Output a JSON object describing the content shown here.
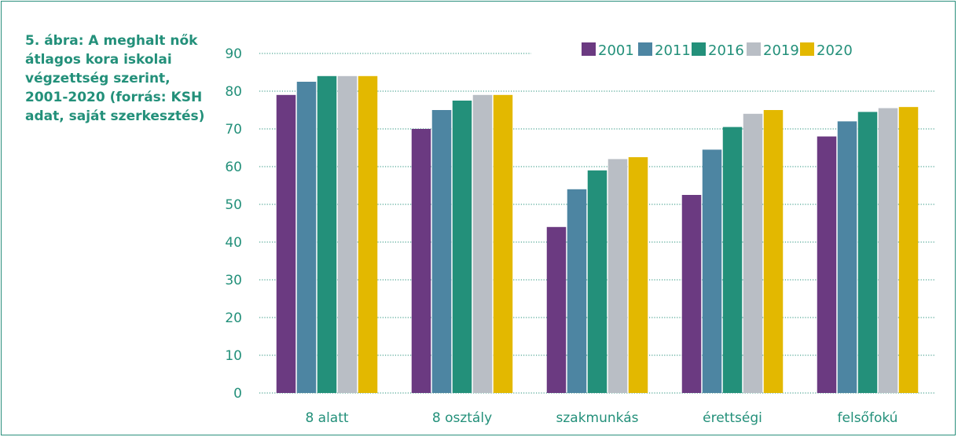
{
  "caption": "5. ábra: A meghalt nők átlagos kora iskolai végzettség szerint, 2001-2020 (forrás: KSH adat, saját szerkesztés)",
  "chart_data": {
    "type": "bar",
    "title": "",
    "xlabel": "",
    "ylabel": "",
    "ylim": [
      0,
      90
    ],
    "yticks": [
      0,
      10,
      20,
      30,
      40,
      50,
      60,
      70,
      80,
      90
    ],
    "grid": true,
    "legend_position": "top-right",
    "categories": [
      "8 alatt",
      "8 osztály",
      "szakmunkás",
      "érettségi",
      "felsőfokú"
    ],
    "series": [
      {
        "name": "2001",
        "color": "#6b3a81",
        "values": [
          79,
          70,
          44,
          52.5,
          68
        ]
      },
      {
        "name": "2011",
        "color": "#4d85a2",
        "values": [
          82.5,
          75,
          54,
          64.5,
          72
        ]
      },
      {
        "name": "2016",
        "color": "#23907a",
        "values": [
          84,
          77.5,
          59,
          70.5,
          74.5
        ]
      },
      {
        "name": "2019",
        "color": "#b9bec5",
        "values": [
          84,
          79,
          62,
          74,
          75.5
        ]
      },
      {
        "name": "2020",
        "color": "#e3b800",
        "values": [
          84,
          79,
          62.5,
          75,
          75.8
        ]
      }
    ]
  }
}
